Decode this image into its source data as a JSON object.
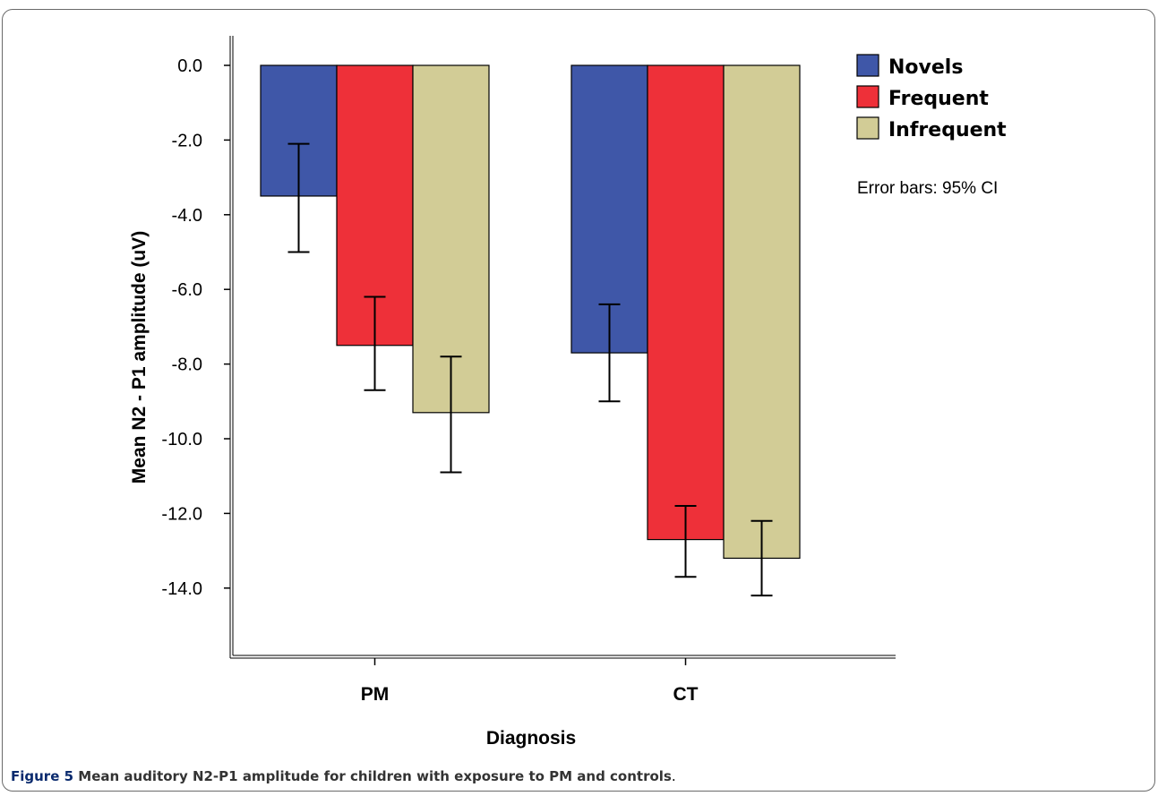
{
  "chart_data": {
    "type": "bar",
    "xlabel": "Diagnosis",
    "ylabel": "Mean N2 - P1 amplitude (uV)",
    "ylim": [
      -16,
      0.6
    ],
    "yticks": [
      0,
      -2,
      -4,
      -6,
      -8,
      -10,
      -12,
      -14
    ],
    "ytick_labels": [
      "0.0",
      "-2.0",
      "-4.0",
      "-6.0",
      "-8.0",
      "-10.0",
      "-12.0",
      "-14.0"
    ],
    "categories": [
      "PM",
      "CT"
    ],
    "series": [
      {
        "name": "Novels",
        "color": "#3f57a8",
        "values": [
          -3.5,
          -7.7
        ],
        "ci_low": [
          -5.0,
          -9.0
        ],
        "ci_high": [
          -2.1,
          -6.4
        ]
      },
      {
        "name": "Frequent",
        "color": "#ee3039",
        "values": [
          -7.5,
          -12.7
        ],
        "ci_low": [
          -8.7,
          -13.7
        ],
        "ci_high": [
          -6.2,
          -11.8
        ]
      },
      {
        "name": "Infrequent",
        "color": "#d2cc96",
        "values": [
          -9.3,
          -13.2
        ],
        "ci_low": [
          -10.9,
          -14.2
        ],
        "ci_high": [
          -7.8,
          -12.2
        ]
      }
    ],
    "legend_position": "top-right",
    "annotation": "Error bars: 95% CI",
    "grid": false
  },
  "caption": {
    "label": "Figure 5",
    "text": " Mean auditory N2-P1 amplitude for children with exposure to PM and controls",
    "end": "."
  }
}
